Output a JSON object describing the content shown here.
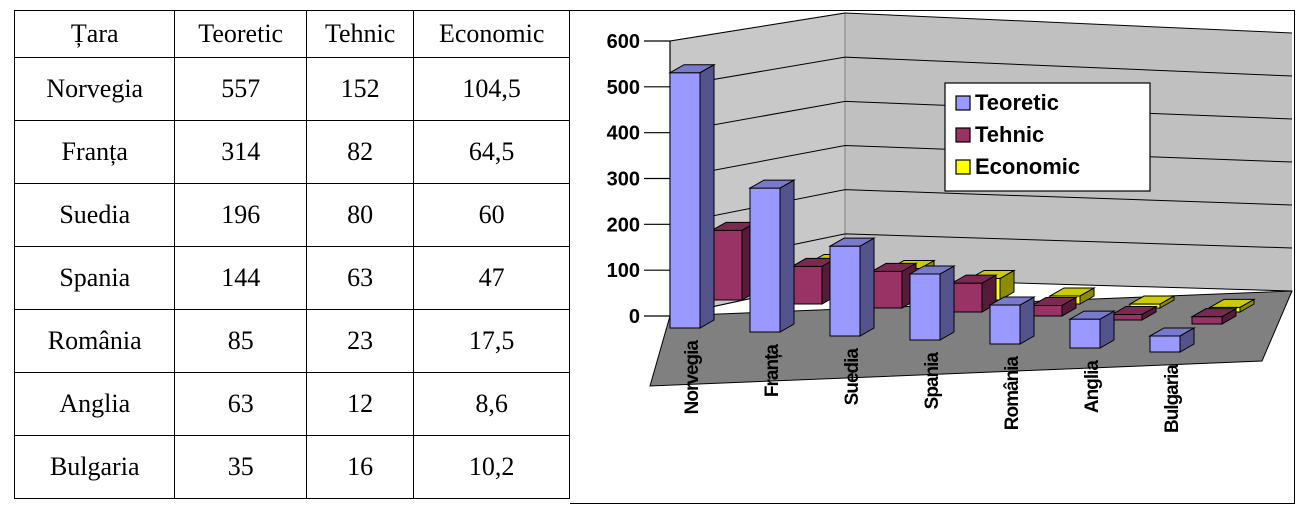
{
  "table": {
    "headers": [
      "Țara",
      "Teoretic",
      "Tehnic",
      "Economic"
    ],
    "rows": [
      [
        "Norvegia",
        "557",
        "152",
        "104,5"
      ],
      [
        "Franța",
        "314",
        "82",
        "64,5"
      ],
      [
        "Suedia",
        "196",
        "80",
        "60"
      ],
      [
        "Spania",
        "144",
        "63",
        "47"
      ],
      [
        "România",
        "85",
        "23",
        "17,5"
      ],
      [
        "Anglia",
        "63",
        "12",
        "8,6"
      ],
      [
        "Bulgaria",
        "35",
        "16",
        "10,2"
      ]
    ]
  },
  "chart_data": {
    "type": "bar",
    "style": "3d-clustered-column",
    "categories": [
      "Norvegia",
      "Franța",
      "Suedia",
      "Spania",
      "România",
      "Anglia",
      "Bulgaria"
    ],
    "series": [
      {
        "name": "Teoretic",
        "values": [
          557,
          314,
          196,
          144,
          85,
          63,
          35
        ],
        "color": "#9999ff"
      },
      {
        "name": "Tehnic",
        "values": [
          152,
          82,
          80,
          63,
          23,
          12,
          16
        ],
        "color": "#993366"
      },
      {
        "name": "Economic",
        "values": [
          104.5,
          64.5,
          60,
          47,
          17.5,
          8.6,
          10.2
        ],
        "color": "#ffff00"
      }
    ],
    "yticks": [
      "0",
      "100",
      "200",
      "300",
      "400",
      "500",
      "600"
    ],
    "ylim": [
      0,
      600
    ],
    "grid": true,
    "legend_position": "top-right",
    "title": "",
    "xlabel": "",
    "ylabel": ""
  }
}
